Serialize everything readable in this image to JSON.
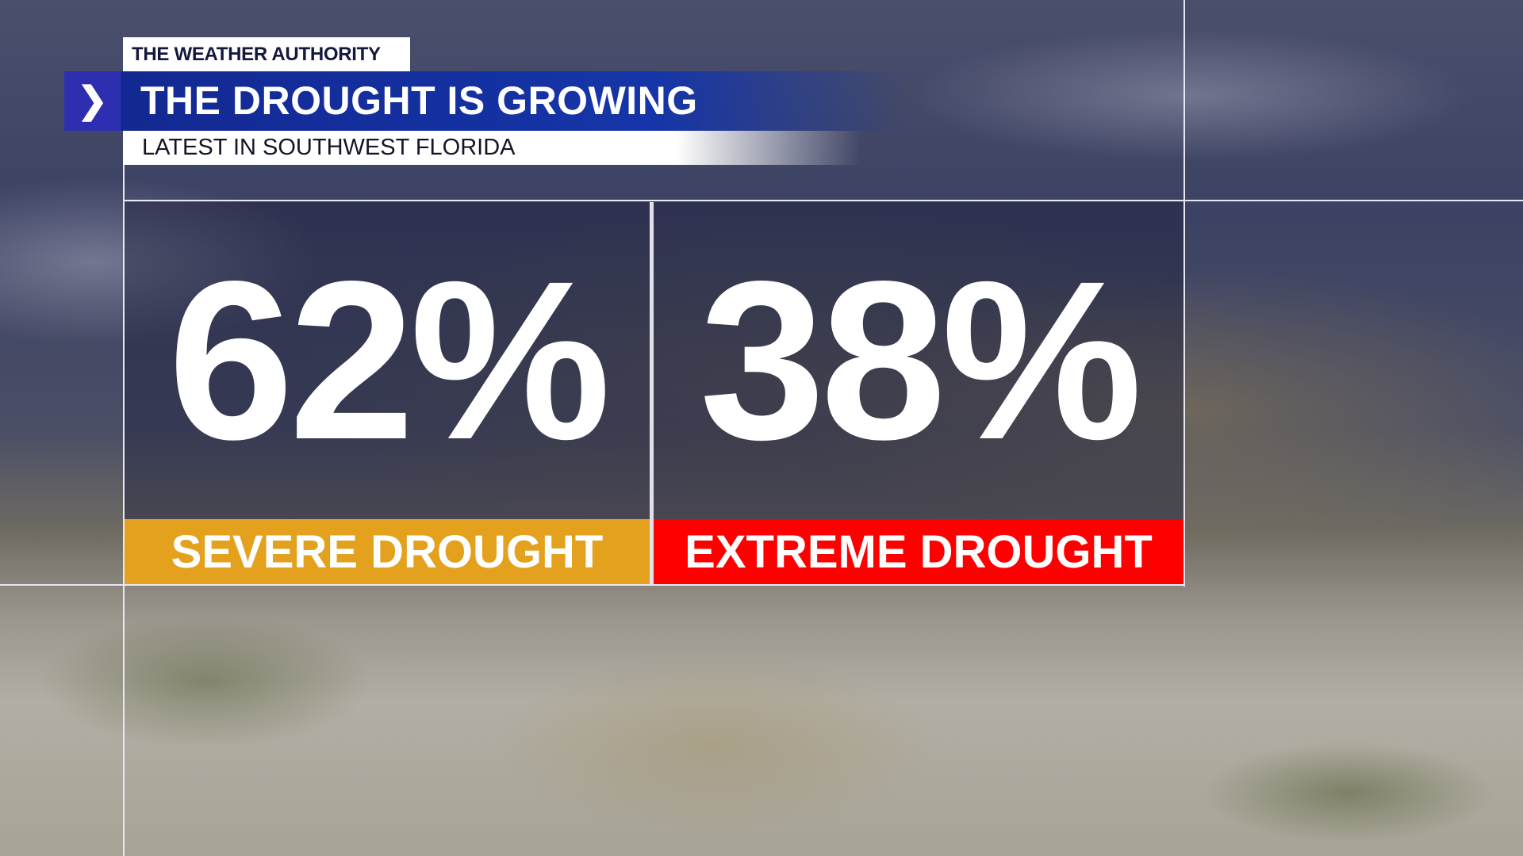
{
  "header": {
    "brand_tag": "THE WEATHER AUTHORITY",
    "title": "THE DROUGHT IS GROWING",
    "subtitle": "LATEST IN SOUTHWEST FLORIDA",
    "chevron_icon": "chevron-right-icon"
  },
  "stats": [
    {
      "value": "62%",
      "label": "SEVERE DROUGHT",
      "color": "#e4a11e"
    },
    {
      "value": "38%",
      "label": "EXTREME DROUGHT",
      "color": "#ff0000"
    }
  ],
  "colors": {
    "title_bar": "#1535a8",
    "chevron_box": "#2d2fb0"
  }
}
